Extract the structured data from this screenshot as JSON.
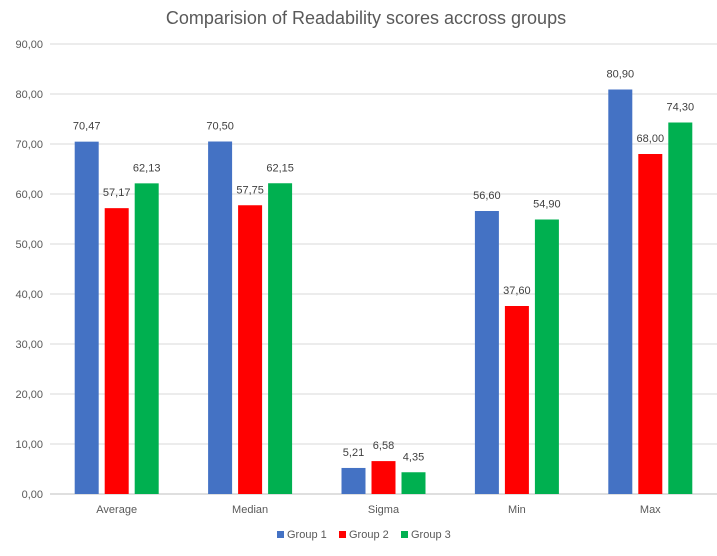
{
  "chart_data": {
    "type": "bar",
    "title": "Comparision of Readability scores accross groups",
    "categories": [
      "Average",
      "Median",
      "Sigma",
      "Min",
      "Max"
    ],
    "series": [
      {
        "name": "Group 1",
        "color": "#4472c4",
        "values": [
          70.47,
          70.5,
          5.21,
          56.6,
          80.9
        ],
        "labels": [
          "70,47",
          "70,50",
          "5,21",
          "56,60",
          "80,90"
        ]
      },
      {
        "name": "Group 2",
        "color": "#ff0000",
        "values": [
          57.17,
          57.75,
          6.58,
          37.6,
          68.0
        ],
        "labels": [
          "57,17",
          "57,75",
          "6,58",
          "37,60",
          "68,00"
        ]
      },
      {
        "name": "Group 3",
        "color": "#00b050",
        "values": [
          62.13,
          62.15,
          4.35,
          54.9,
          74.3
        ],
        "labels": [
          "62,13",
          "62,15",
          "4,35",
          "54,90",
          "74,30"
        ]
      }
    ],
    "ylim": [
      0,
      90
    ],
    "yticks": [
      0,
      10,
      20,
      30,
      40,
      50,
      60,
      70,
      80,
      90
    ],
    "ytick_labels": [
      "0,00",
      "10,00",
      "20,00",
      "30,00",
      "40,00",
      "50,00",
      "60,00",
      "70,00",
      "80,00",
      "90,00"
    ],
    "grid": true,
    "legend_position": "bottom"
  }
}
